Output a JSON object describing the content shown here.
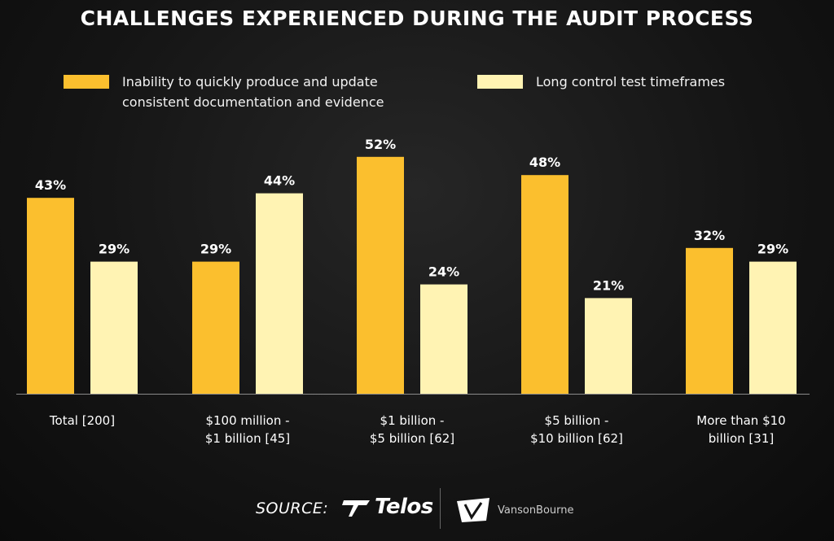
{
  "title": "CHALLENGES EXPERIENCED DURING THE AUDIT PROCESS",
  "legend": [
    {
      "line1": "Inability to quickly produce and update",
      "line2": "consistent documentation and evidence",
      "color": "#fbbf2e"
    },
    {
      "line1": "Long control test timeframes",
      "line2": "",
      "color": "#fff3b3"
    }
  ],
  "chart_data": {
    "type": "bar",
    "categories": [
      [
        "Total [200]"
      ],
      [
        "$100 million -",
        "$1 billion [45]"
      ],
      [
        "$1 billion -",
        "$5 billion [62]"
      ],
      [
        "$5 billion -",
        "$10 billion [62]"
      ],
      [
        "More than $10",
        "billion [31]"
      ]
    ],
    "series": [
      {
        "name": "Inability to quickly produce and update consistent documentation and evidence",
        "values": [
          43,
          29,
          52,
          48,
          32
        ],
        "color": "#fbbf2e"
      },
      {
        "name": "Long control test timeframes",
        "values": [
          29,
          44,
          24,
          21,
          29
        ],
        "color": "#fff3b3"
      }
    ],
    "value_suffix": "%",
    "ylim": [
      0,
      100
    ],
    "grid": false,
    "legend_position": "top"
  },
  "footer": {
    "source_label": "SOURCE:",
    "brand_1": "Telos",
    "brand_2": "VansonBourne"
  }
}
